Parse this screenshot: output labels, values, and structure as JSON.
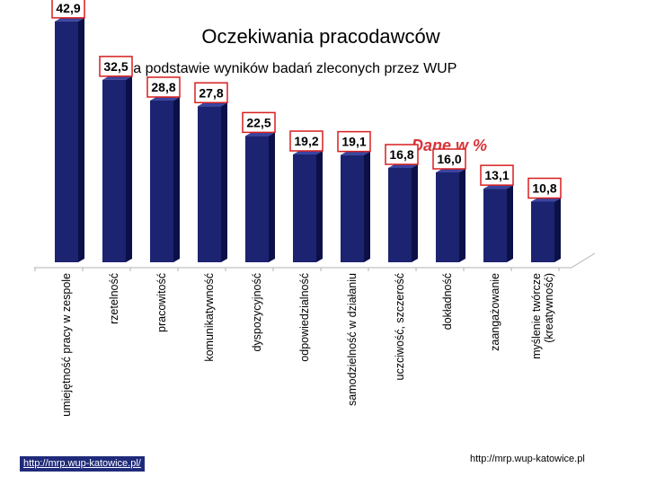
{
  "title": "Oczekiwania pracodawców",
  "subtitle_dash": "-",
  "subtitle": "na podstawie wyników badań  zleconych przez WUP",
  "footer": {
    "left_link": "http://mrp.wup-katowice.pl/",
    "right_text": "http://mrp.wup-katowice.pl"
  },
  "chart_data": {
    "type": "bar",
    "title": "Oczekiwania pracodawców",
    "annotation": "Dane w %",
    "categories": [
      [
        "umiejętność pracy w zespole"
      ],
      [
        "rzetelność"
      ],
      [
        "pracowitość"
      ],
      [
        "komunikatywność"
      ],
      [
        "dyspozycyjność"
      ],
      [
        "odpowiedzialność"
      ],
      [
        "samodzielność w działaniu"
      ],
      [
        "uczciwość, szczerość"
      ],
      [
        "dokładność"
      ],
      [
        "zaangażowanie"
      ],
      [
        "myślenie twórcze",
        "(kreatywność)"
      ]
    ],
    "values": [
      42.9,
      32.5,
      28.8,
      27.8,
      22.5,
      19.2,
      19.1,
      16.8,
      16.0,
      13.1,
      10.8
    ],
    "value_labels": [
      "42,9",
      "32,5",
      "28,8",
      "27,8",
      "22,5",
      "19,2",
      "19,1",
      "16,8",
      "16,0",
      "13,1",
      "10,8"
    ],
    "ylim": [
      0,
      45
    ],
    "grid": false,
    "legend": "none",
    "colors": {
      "bar_front": "#1c2370",
      "bar_side": "#0c1048",
      "bar_top": "#3a45a0",
      "label_border": "#d81e1e",
      "annotation": "#d8343a",
      "axis": "#b0b0b0",
      "footer_bg": "#1f2a7a"
    }
  }
}
